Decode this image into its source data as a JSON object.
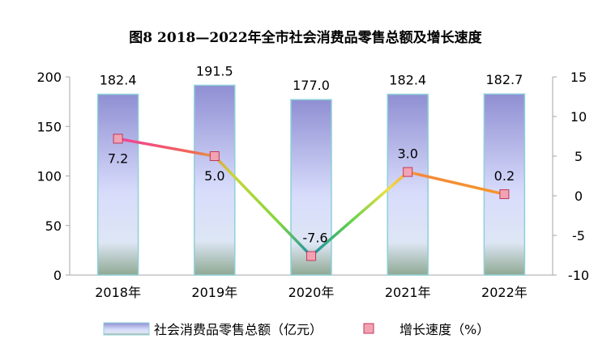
{
  "chart_data": {
    "type": "bar",
    "title": "图8  2018—2022年全市社会消费品零售总额及增长速度",
    "categories": [
      "2018年",
      "2019年",
      "2020年",
      "2021年",
      "2022年"
    ],
    "series": [
      {
        "name": "社会消费品零售总额（亿元）",
        "type": "bar",
        "axis": "left",
        "values": [
          182.4,
          191.5,
          177.0,
          182.4,
          182.7
        ],
        "labels": [
          "182.4",
          "191.5",
          "177.0",
          "182.4",
          "182.7"
        ]
      },
      {
        "name": "增长速度（%）",
        "type": "line",
        "axis": "right",
        "values": [
          7.2,
          5.0,
          -7.6,
          3.0,
          0.2
        ],
        "labels": [
          "7.2",
          "5.0",
          "-7.6",
          "3.0",
          "0.2"
        ]
      }
    ],
    "left_axis": {
      "ylim": [
        0,
        200
      ],
      "ticks": [
        "0",
        "50",
        "100",
        "150",
        "200"
      ]
    },
    "right_axis": {
      "ylim": [
        -10,
        15
      ],
      "ticks": [
        "-10",
        "-5",
        "0",
        "5",
        "10",
        "15"
      ]
    },
    "legend_position": "bottom",
    "colors": {
      "bar_top": "#8f8fd3",
      "bar_mid": "#d8dcfb",
      "bar_bottom": "#8fa993",
      "bar_border": "#8fd0d8",
      "line_pink": "#f0409a",
      "line_green": "#7ed63a",
      "line_teal": "#1f8fb0",
      "line_orange": "#f5962a",
      "marker_fill": "#f2a3b3",
      "marker_stroke": "#c03a5a",
      "axis": "#a6a6a6"
    }
  }
}
